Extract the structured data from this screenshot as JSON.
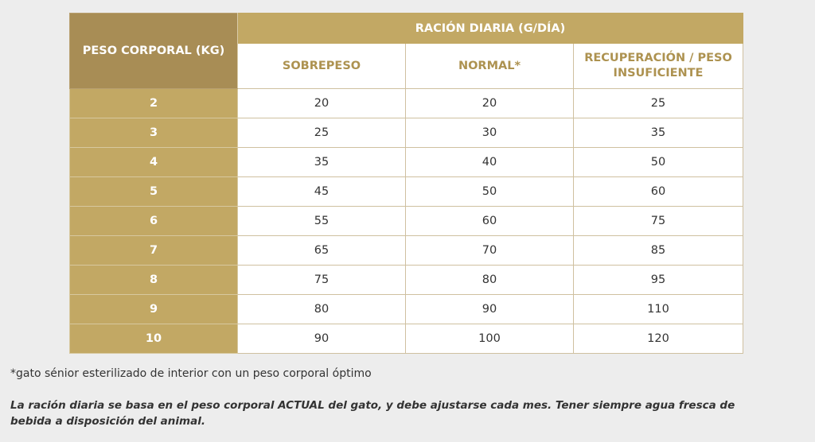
{
  "table": {
    "weight_header": "PESO CORPORAL (KG)",
    "group_header": "RACIÓN DIARIA (G/DÍA)",
    "columns": [
      "SOBREPESO",
      "NORMAL*",
      "RECUPERACIÓN / PESO INSUFICIENTE"
    ],
    "rows": [
      {
        "weight": "2",
        "values": [
          "20",
          "20",
          "25"
        ]
      },
      {
        "weight": "3",
        "values": [
          "25",
          "30",
          "35"
        ]
      },
      {
        "weight": "4",
        "values": [
          "35",
          "40",
          "50"
        ]
      },
      {
        "weight": "5",
        "values": [
          "45",
          "50",
          "60"
        ]
      },
      {
        "weight": "6",
        "values": [
          "55",
          "60",
          "75"
        ]
      },
      {
        "weight": "7",
        "values": [
          "65",
          "70",
          "85"
        ]
      },
      {
        "weight": "8",
        "values": [
          "75",
          "80",
          "95"
        ]
      },
      {
        "weight": "9",
        "values": [
          "80",
          "90",
          "110"
        ]
      },
      {
        "weight": "10",
        "values": [
          "90",
          "100",
          "120"
        ]
      }
    ]
  },
  "footnote": "*gato sénior esterilizado de interior con un peso corporal óptimo",
  "note": "La ración diaria se basa en el peso corporal ACTUAL del gato, y debe ajustarse cada mes. Tener siempre agua fresca de bebida a disposición del animal.",
  "colors": {
    "gold": "#c2a864",
    "gold_dark": "#a88d55",
    "gold_text": "#ad9250",
    "background": "#ededed"
  }
}
